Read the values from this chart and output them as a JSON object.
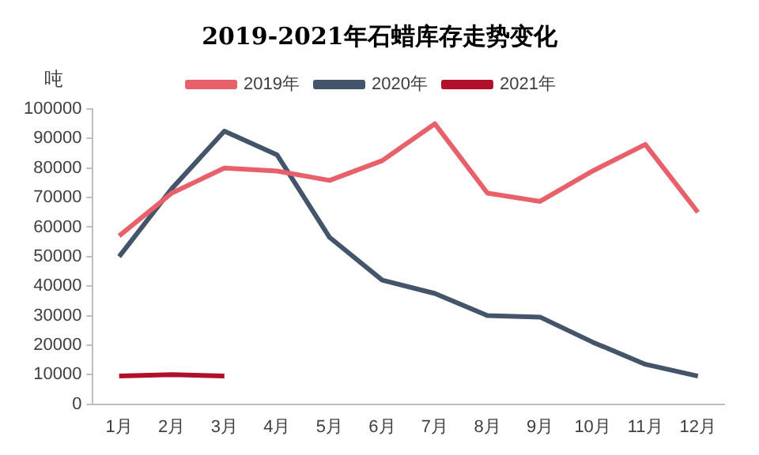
{
  "chart_data": {
    "type": "line",
    "title": "2019-2021年石蜡库存走势变化",
    "ylabel": "吨",
    "categories": [
      "1月",
      "2月",
      "3月",
      "4月",
      "5月",
      "6月",
      "7月",
      "8月",
      "9月",
      "10月",
      "11月",
      "12月"
    ],
    "series": [
      {
        "name": "2019年",
        "color": "#e8606a",
        "values": [
          57000,
          71500,
          80000,
          79000,
          75800,
          82500,
          95000,
          71500,
          68700,
          79000,
          88000,
          65000
        ]
      },
      {
        "name": "2020年",
        "color": "#44546a",
        "values": [
          50000,
          73000,
          92500,
          84500,
          56500,
          42000,
          37500,
          30000,
          29500,
          21000,
          13500,
          9500
        ]
      },
      {
        "name": "2021年",
        "color": "#b0102a",
        "values": [
          9500,
          10000,
          9500,
          null,
          null,
          null,
          null,
          null,
          null,
          null,
          null,
          null
        ]
      }
    ],
    "ylim": [
      0,
      100000
    ],
    "yticks": [
      0,
      10000,
      20000,
      30000,
      40000,
      50000,
      60000,
      70000,
      80000,
      90000,
      100000
    ],
    "grid": false,
    "legend": "top",
    "marker": "none",
    "line_style": "solid"
  }
}
